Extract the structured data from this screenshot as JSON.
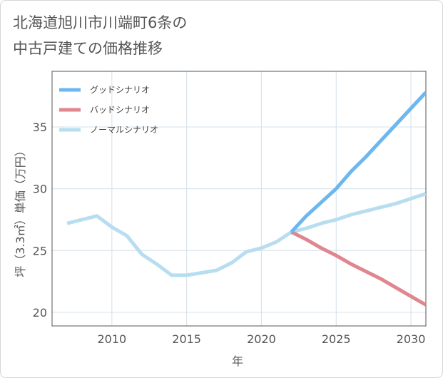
{
  "title_lines": [
    "北海道旭川市川端町6条の",
    "中古戸建ての価格推移"
  ],
  "chart_data": {
    "type": "line",
    "title": "北海道旭川市川端町6条の中古戸建ての価格推移",
    "xlabel": "年",
    "ylabel": "坪（3.3㎡）単価（万円）",
    "xlim": [
      2006,
      2031
    ],
    "ylim": [
      18.9,
      39.5
    ],
    "xticks": [
      2010,
      2015,
      2020,
      2025,
      2030
    ],
    "yticks": [
      20,
      25,
      30,
      35
    ],
    "grid": true,
    "legend_position": "top-left",
    "series": [
      {
        "name": "グッドシナリオ",
        "color": "#6cb7ef",
        "x": [
          2022,
          2023,
          2024,
          2025,
          2026,
          2027,
          2028,
          2029,
          2030,
          2031
        ],
        "y": [
          26.5,
          27.8,
          28.9,
          30.0,
          31.4,
          32.6,
          33.9,
          35.2,
          36.5,
          37.8
        ]
      },
      {
        "name": "バッドシナリオ",
        "color": "#e0868f",
        "x": [
          2022,
          2023,
          2024,
          2025,
          2026,
          2027,
          2028,
          2029,
          2030,
          2031
        ],
        "y": [
          26.5,
          25.9,
          25.2,
          24.6,
          23.9,
          23.3,
          22.7,
          22.0,
          21.3,
          20.6
        ]
      },
      {
        "name": "ノーマルシナリオ",
        "color": "#b7def0",
        "x": [
          2007,
          2008,
          2009,
          2010,
          2011,
          2012,
          2013,
          2014,
          2015,
          2016,
          2017,
          2018,
          2019,
          2020,
          2021,
          2022,
          2023,
          2024,
          2025,
          2026,
          2027,
          2028,
          2029,
          2030,
          2031
        ],
        "y": [
          27.2,
          27.5,
          27.8,
          26.9,
          26.2,
          24.7,
          23.9,
          23.0,
          23.0,
          23.2,
          23.4,
          24.0,
          24.9,
          25.2,
          25.7,
          26.5,
          26.8,
          27.2,
          27.5,
          27.9,
          28.2,
          28.5,
          28.8,
          29.2,
          29.6
        ]
      }
    ]
  }
}
